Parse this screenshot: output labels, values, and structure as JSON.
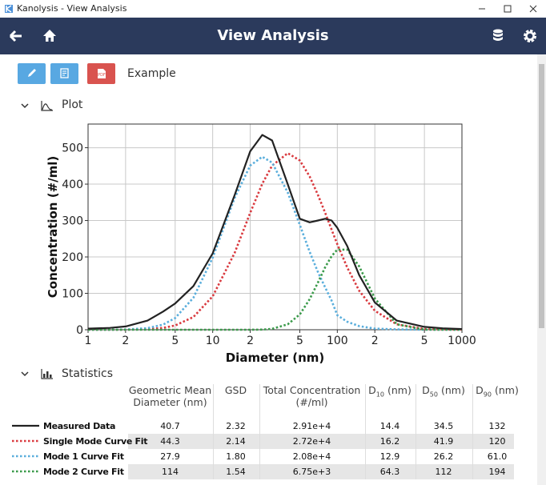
{
  "window": {
    "title": "Kanolysis - View Analysis"
  },
  "header": {
    "title": "View Analysis"
  },
  "toolbar": {
    "label": "Example"
  },
  "sections": {
    "plot": "Plot",
    "statistics": "Statistics"
  },
  "chart_data": {
    "type": "line",
    "x_label": "Diameter (nm)",
    "y_label": "Concentration (#/ml)",
    "x_scale": "log",
    "grid": true,
    "x": [
      1,
      1.5,
      2,
      3,
      4,
      5,
      7,
      10,
      15,
      20,
      25,
      30,
      40,
      50,
      60,
      70,
      80,
      90,
      100,
      120,
      150,
      200,
      300,
      500,
      700,
      1000
    ],
    "xlim": [
      1,
      1000
    ],
    "xticks": [
      1,
      2,
      5,
      10,
      {
        "value": 20,
        "label": "2"
      },
      {
        "value": 50,
        "label": "5"
      },
      100,
      {
        "value": 200,
        "label": "2"
      },
      {
        "value": 500,
        "label": "5"
      },
      1000
    ],
    "ylim": [
      0,
      565
    ],
    "yticks": [
      0,
      100,
      200,
      300,
      400,
      500
    ],
    "series": [
      {
        "name": "Measured Data",
        "color": "#222222",
        "style": "solid",
        "values": [
          3,
          5,
          9,
          25,
          50,
          72,
          120,
          210,
          370,
          490,
          535,
          520,
          400,
          305,
          295,
          300,
          305,
          300,
          280,
          230,
          150,
          75,
          25,
          8,
          4,
          2
        ]
      },
      {
        "name": "Single Mode Curve Fit",
        "color": "#d9393e",
        "style": "dotted",
        "values": [
          0,
          0,
          0.2,
          1.5,
          5,
          11.6,
          35,
          92,
          211,
          321,
          401,
          451,
          485,
          465,
          421,
          370,
          321,
          275,
          235,
          171,
          107,
          52,
          15,
          2,
          1,
          0
        ]
      },
      {
        "name": "Mode 1 Curve Fit",
        "color": "#5aaedc",
        "style": "dotted",
        "values": [
          0,
          0,
          0.6,
          4.4,
          14,
          32,
          88,
          198,
          362,
          451,
          475,
          459,
          377,
          288,
          214,
          158,
          116,
          80,
          40,
          22,
          10,
          3,
          1,
          0,
          0,
          0
        ]
      },
      {
        "name": "Mode 2 Curve Fit",
        "color": "#3a9a4a",
        "style": "dotted",
        "values": [
          0,
          0,
          0,
          0,
          0,
          0,
          0,
          0,
          0,
          0,
          0.5,
          2.5,
          15,
          42,
          84,
          130,
          172,
          202,
          220,
          220,
          174,
          86,
          15,
          0.5,
          0,
          0
        ]
      }
    ]
  },
  "table": {
    "headers": [
      {
        "text": "Geometric Mean Diameter (nm)"
      },
      {
        "text": "GSD"
      },
      {
        "text": "Total Concentration (#/ml)"
      },
      {
        "main": "D",
        "sub": "10",
        "unit": "(nm)"
      },
      {
        "main": "D",
        "sub": "50",
        "unit": "(nm)"
      },
      {
        "main": "D",
        "sub": "90",
        "unit": "(nm)"
      }
    ],
    "rows": [
      [
        "40.7",
        "2.32",
        "2.91e+4",
        "14.4",
        "34.5",
        "132"
      ],
      [
        "44.3",
        "2.14",
        "2.72e+4",
        "16.2",
        "41.9",
        "120"
      ],
      [
        "27.9",
        "1.80",
        "2.08e+4",
        "12.9",
        "26.2",
        "61.0"
      ],
      [
        "114",
        "1.54",
        "6.75e+3",
        "64.3",
        "112",
        "194"
      ]
    ]
  }
}
